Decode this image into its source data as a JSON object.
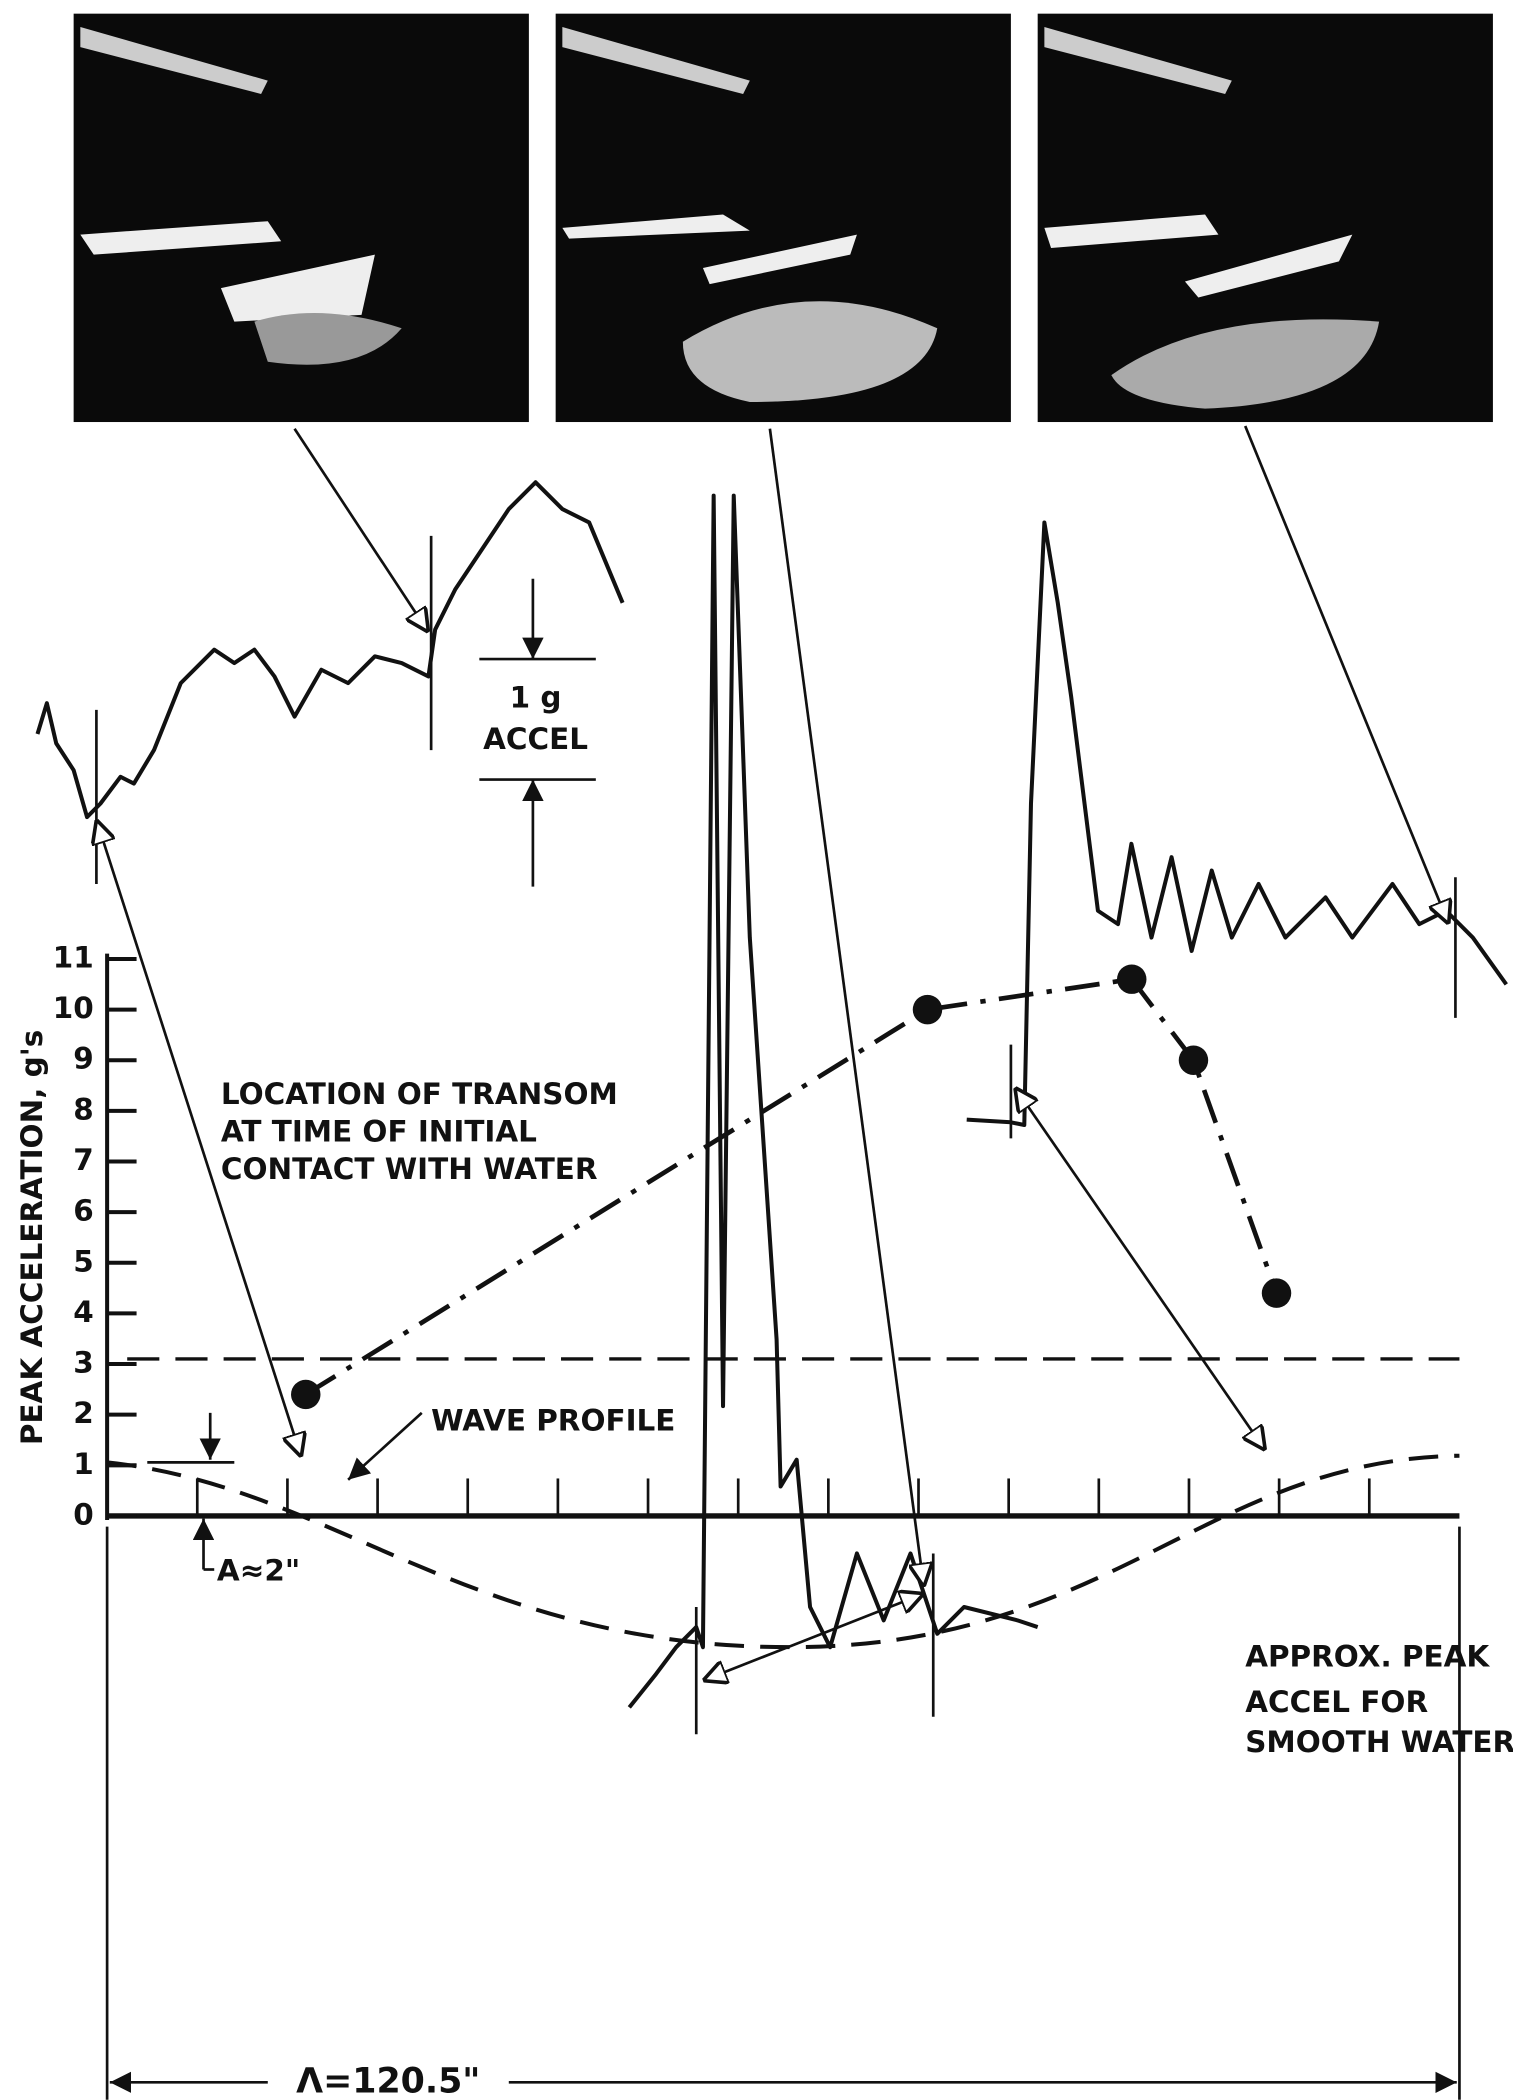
{
  "chart_data": {
    "type": "line",
    "y_label": "PEAK ACCELERATION, g's",
    "ylim": [
      0,
      11
    ],
    "yticks": [
      0,
      1,
      2,
      3,
      4,
      5,
      6,
      7,
      8,
      9,
      10,
      11
    ],
    "xlim": [
      0,
      120.5
    ],
    "series": [
      {
        "color": "#111111",
        "x": [
          17.7,
          73.1,
          91.3,
          96.8,
          104.2
        ],
        "values": [
          2.4,
          10.0,
          10.6,
          9.0,
          4.4
        ]
      }
    ],
    "reference_line": {
      "value": 3.1,
      "label": [
        "APPROX. PEAK",
        "ACCEL FOR",
        "SMOOTH WATER"
      ]
    },
    "transom_note": [
      "LOCATION OF TRANSOM",
      "AT TIME OF INITIAL",
      "CONTACT WITH WATER"
    ],
    "scale_bar": [
      "1 g",
      "ACCEL"
    ],
    "wave_label": "WAVE PROFILE",
    "amplitude_label": "A≈2\"",
    "wavelength_label": "Λ=120.5\""
  }
}
